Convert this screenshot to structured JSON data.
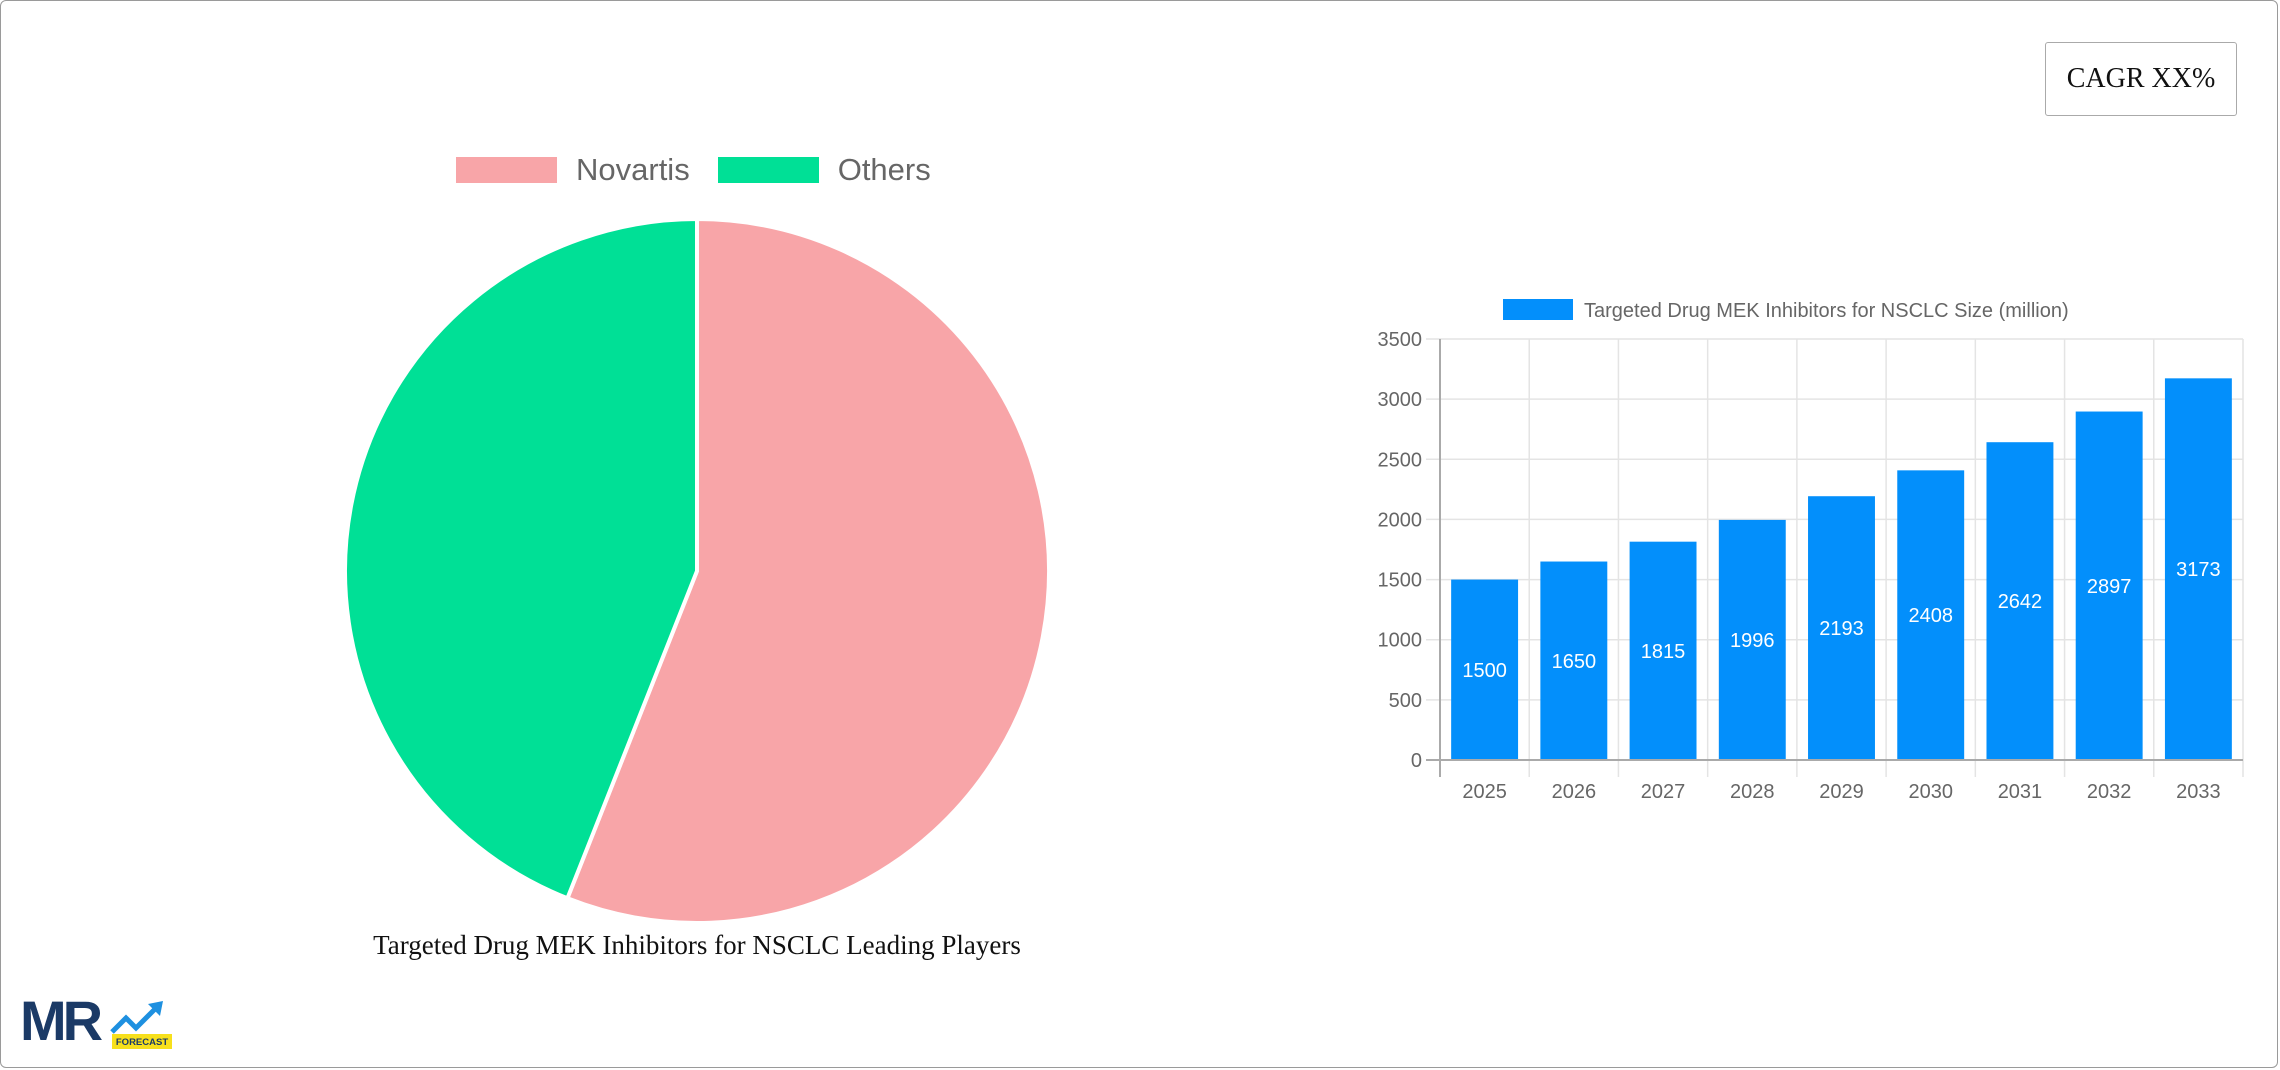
{
  "cagr_badge": {
    "label": "CAGR XX%"
  },
  "pie": {
    "caption": "Targeted Drug MEK Inhibitors for NSCLC Leading Players",
    "legend": [
      {
        "label": "Novartis",
        "color": "#f8a5a8"
      },
      {
        "label": "Others",
        "color": "#00e096"
      }
    ]
  },
  "bar": {
    "legend_label": "Targeted Drug MEK Inhibitors for NSCLC Size (million)",
    "color": "#038ffb",
    "y_ticks": [
      "0",
      "500",
      "1000",
      "1500",
      "2000",
      "2500",
      "3000",
      "3500"
    ],
    "categories": [
      "2025",
      "2026",
      "2027",
      "2028",
      "2029",
      "2030",
      "2031",
      "2032",
      "2033"
    ],
    "values": [
      1500,
      1650,
      1815,
      1996,
      2193,
      2408,
      2642,
      2897,
      3173
    ]
  },
  "logo": {
    "text": "MR",
    "badge": "FORECAST"
  },
  "chart_data": [
    {
      "type": "pie",
      "title": "Targeted Drug MEK Inhibitors for NSCLC Leading Players",
      "categories": [
        "Novartis",
        "Others"
      ],
      "values": [
        56,
        44
      ],
      "colors": [
        "#f8a5a8",
        "#00e096"
      ],
      "legend_position": "top"
    },
    {
      "type": "bar",
      "title": "",
      "categories": [
        "2025",
        "2026",
        "2027",
        "2028",
        "2029",
        "2030",
        "2031",
        "2032",
        "2033"
      ],
      "series": [
        {
          "name": "Targeted Drug MEK Inhibitors for NSCLC Size (million)",
          "values": [
            1500,
            1650,
            1815,
            1996,
            2193,
            2408,
            2642,
            2897,
            3173
          ]
        }
      ],
      "xlabel": "",
      "ylabel": "",
      "ylim": [
        0,
        3500
      ],
      "y_tick_step": 500,
      "grid": true,
      "data_labels": true,
      "legend_position": "top"
    }
  ]
}
